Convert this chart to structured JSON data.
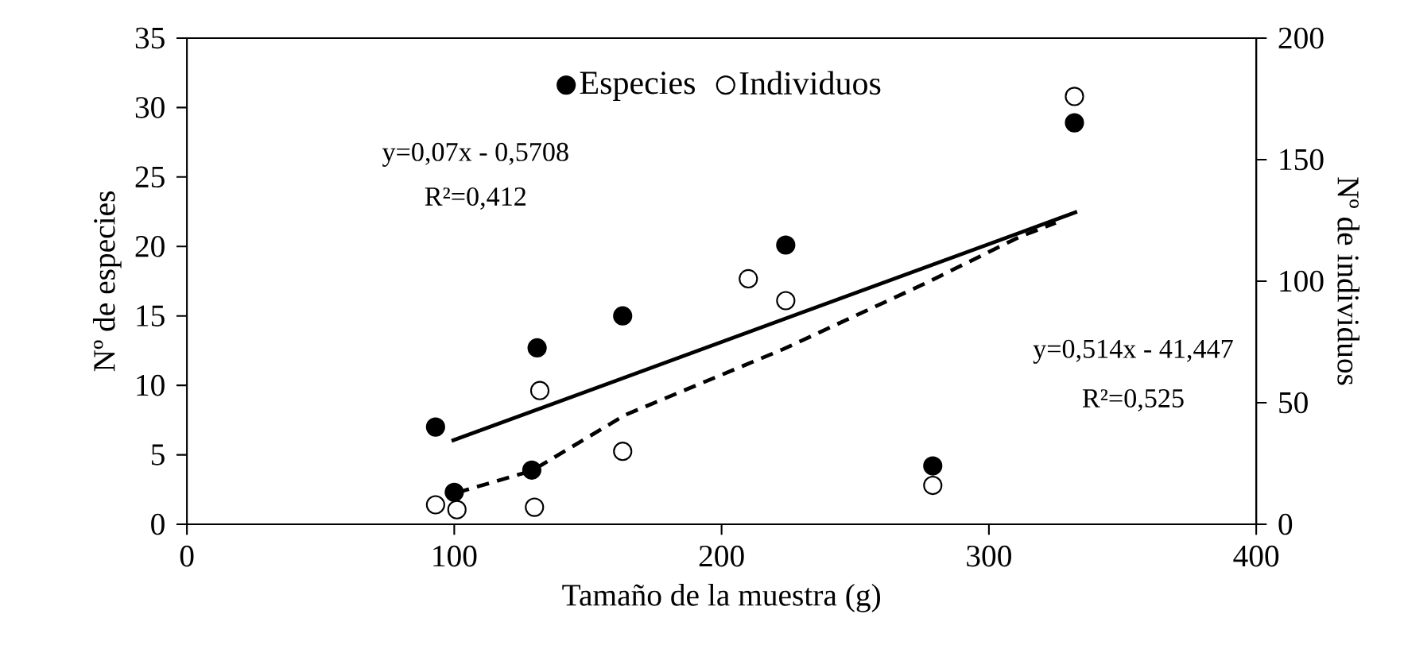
{
  "chart_data": {
    "type": "scatter",
    "xlabel": "Tamaño de la muestra (g)",
    "ylabel": "Nº de especies",
    "y2label": "Nº de individuos",
    "xlim": [
      0,
      400
    ],
    "xticks": [
      0,
      100,
      200,
      300,
      400
    ],
    "ylim": [
      0,
      35
    ],
    "yticks": [
      0,
      5,
      10,
      15,
      20,
      25,
      30,
      35
    ],
    "y2lim": [
      0,
      200
    ],
    "y2ticks": [
      0,
      50,
      100,
      150,
      200
    ],
    "grid": false,
    "legend": "top",
    "marker": "circle",
    "annotations": [
      "y=0,07x - 0,5708",
      "R²=0,412",
      "y=0,514x - 41,447",
      "R²=0,525"
    ],
    "series": [
      {
        "name": "Especies",
        "color": "#000000",
        "x": [
          93,
          100,
          129,
          131,
          163,
          224,
          279,
          332
        ],
        "values": [
          7.0,
          2.3,
          3.9,
          12.7,
          15.0,
          20.1,
          4.2,
          28.9
        ]
      },
      {
        "name": "Individuos",
        "axis": "y2",
        "color": "#ffffff",
        "x": [
          93,
          101,
          130,
          132,
          163,
          210,
          224,
          279,
          332
        ],
        "values": [
          8,
          6,
          7,
          55,
          30,
          101,
          92,
          16,
          176
        ]
      },
      {
        "type": "line",
        "color": "#000000",
        "line_style": "solid",
        "marker": "none",
        "x": [
          99,
          333
        ],
        "values": [
          6.0,
          22.5
        ]
      },
      {
        "type": "line",
        "axis": "y2",
        "color": "#000000",
        "line_style": "dashed",
        "marker": "none",
        "x": [
          101,
          129,
          164,
          223,
          276,
          311,
          325
        ],
        "values": [
          13,
          22,
          45,
          72,
          99,
          118,
          124
        ]
      }
    ]
  }
}
